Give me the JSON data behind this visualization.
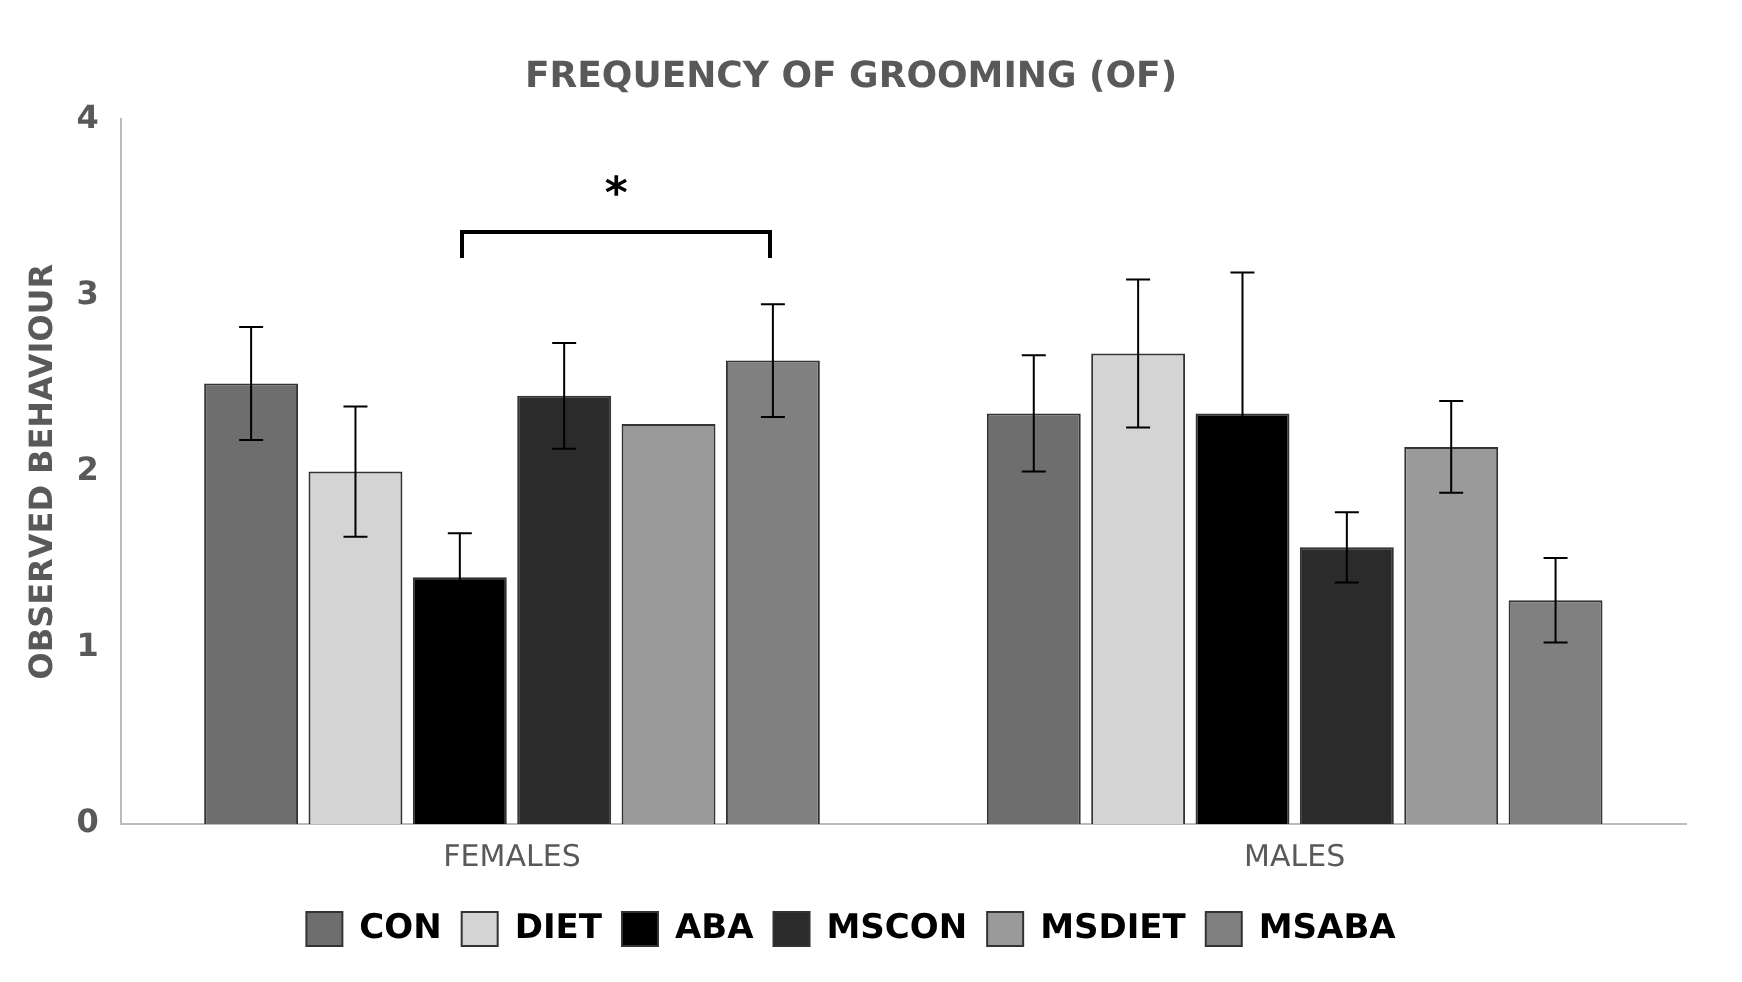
{
  "chart_data": {
    "type": "bar",
    "title": "FREQUENCY OF GROOMING (OF)",
    "ylabel": "OBSERVED BEHAVIOUR",
    "categories": [
      "FEMALES",
      "MALES"
    ],
    "series": [
      {
        "name": "CON",
        "color": "#6e6e6e",
        "values": [
          2.5,
          2.33
        ],
        "errors": [
          0.32,
          0.33
        ]
      },
      {
        "name": "DIET",
        "color": "#d4d4d4",
        "values": [
          2.0,
          2.67
        ],
        "errors": [
          0.37,
          0.42
        ]
      },
      {
        "name": "ABA",
        "color": "#000000",
        "values": [
          1.4,
          2.33
        ],
        "errors": [
          0.25,
          0.8
        ]
      },
      {
        "name": "MSCON",
        "color": "#2b2b2b",
        "values": [
          2.43,
          1.57
        ],
        "errors": [
          0.3,
          0.2
        ]
      },
      {
        "name": "MSDIET",
        "color": "#9a9a9a",
        "values": [
          2.27,
          2.14
        ],
        "errors": [
          null,
          0.26
        ]
      },
      {
        "name": "MSABA",
        "color": "#808080",
        "values": [
          2.63,
          1.27
        ],
        "errors": [
          0.32,
          0.24
        ]
      }
    ],
    "ylim": [
      0,
      4
    ],
    "yticks": [
      0,
      1,
      2,
      3,
      4
    ],
    "grid": false,
    "legend": "bottom",
    "annotations": [
      "*"
    ]
  }
}
